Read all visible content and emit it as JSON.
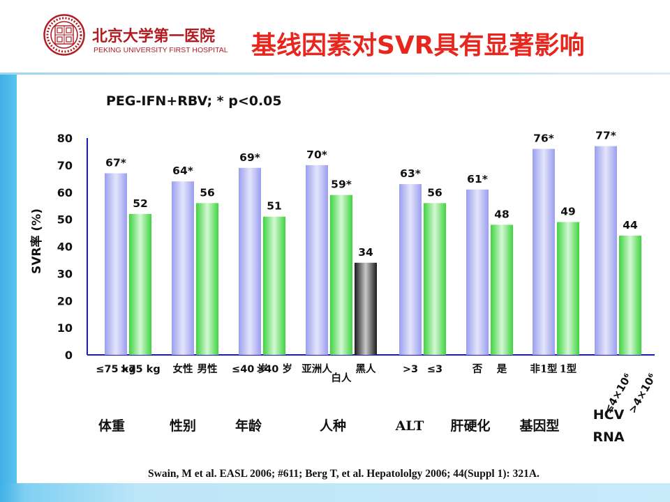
{
  "header": {
    "logo": {
      "seal_text": "北京大學 PEKING UNIVERSITY 1898",
      "name_cn": "北京大学第一医院",
      "name_en": "PEKING UNIVERSITY FIRST HOSPITAL",
      "colors": {
        "seal": "#b01c22"
      }
    },
    "title": "基线因素对SVR具有显著影响"
  },
  "chart_data": {
    "type": "bar",
    "subtitle": "PEG-IFN+RBV; * p<0.05",
    "ylabel": "SVR率 (%)",
    "ylim": [
      0,
      80
    ],
    "yticks": [
      0,
      10,
      20,
      30,
      40,
      50,
      60,
      70,
      80
    ],
    "grid": false,
    "legend": "none",
    "colors": {
      "first": "#b9bdf3",
      "second": "#8ee98e",
      "third": "#555555"
    },
    "groups": [
      {
        "name": "体重",
        "bars": [
          {
            "label": "≤75 kg",
            "value": 67,
            "text": "67*",
            "color": "first"
          },
          {
            "label": ">75 kg",
            "value": 52,
            "text": "52",
            "color": "second"
          }
        ]
      },
      {
        "name": "性别",
        "bars": [
          {
            "label": "女性",
            "value": 64,
            "text": "64*",
            "color": "first"
          },
          {
            "label": "男性",
            "value": 56,
            "text": "56",
            "color": "second"
          }
        ]
      },
      {
        "name": "年龄",
        "bars": [
          {
            "label": "≤40 岁",
            "value": 69,
            "text": "69*",
            "color": "first"
          },
          {
            "label": ">40 岁",
            "value": 51,
            "text": "51",
            "color": "second"
          }
        ]
      },
      {
        "name": "人种",
        "bars": [
          {
            "label": "亚洲人",
            "value": 70,
            "text": "70*",
            "color": "first"
          },
          {
            "label": "白人",
            "value": 59,
            "text": "59*",
            "color": "second"
          },
          {
            "label": "黑人",
            "value": 34,
            "text": "34",
            "color": "third"
          }
        ]
      },
      {
        "name": "ALT",
        "bars": [
          {
            "label": ">3",
            "value": 63,
            "text": "63*",
            "color": "first"
          },
          {
            "label": "≤3",
            "value": 56,
            "text": "56",
            "color": "second"
          }
        ]
      },
      {
        "name": "肝硬化",
        "bars": [
          {
            "label": "否",
            "value": 61,
            "text": "61*",
            "color": "first"
          },
          {
            "label": "是",
            "value": 48,
            "text": "48",
            "color": "second"
          }
        ]
      },
      {
        "name": "基因型",
        "bars": [
          {
            "label": "非1型",
            "value": 76,
            "text": "76*",
            "color": "first"
          },
          {
            "label": "1型",
            "value": 49,
            "text": "49",
            "color": "second"
          }
        ]
      },
      {
        "name": "HCV RNA",
        "bars": [
          {
            "label": "≤4×10⁶",
            "value": 77,
            "text": "77*",
            "color": "first"
          },
          {
            "label": ">4×10⁶",
            "value": 44,
            "text": "44",
            "color": "second"
          }
        ]
      }
    ]
  },
  "citation": "Swain, M et al. EASL 2006; #611; Berg T, et al. Hepatololgy 2006; 44(Suppl 1): 321A."
}
